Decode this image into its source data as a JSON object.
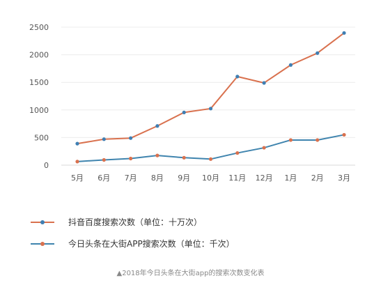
{
  "chart_data": {
    "type": "line",
    "categories": [
      "5月",
      "6月",
      "7月",
      "8月",
      "9月",
      "10月",
      "11月",
      "12月",
      "1月",
      "2月",
      "3月"
    ],
    "series": [
      {
        "name": "抖音百度搜索次数（单位：十万次）",
        "color": "#d9714e",
        "marker_color": "#3f7fb3",
        "values": [
          390,
          470,
          490,
          710,
          955,
          1025,
          1605,
          1490,
          1815,
          2030,
          2395
        ]
      },
      {
        "name": "今日头条在大街APP搜索次数（单位：千次）",
        "color": "#3f84ae",
        "marker_color": "#d9714e",
        "values": [
          65,
          95,
          120,
          175,
          135,
          110,
          220,
          315,
          455,
          455,
          550
        ]
      }
    ],
    "y_ticks": [
      "0",
      "500",
      "1000",
      "1500",
      "2000",
      "2500"
    ],
    "ylim": [
      0,
      2500
    ],
    "grid": true,
    "legend_position": "bottom-left",
    "caption": "▲2018年今日头条在大街app的搜索次数变化表"
  }
}
